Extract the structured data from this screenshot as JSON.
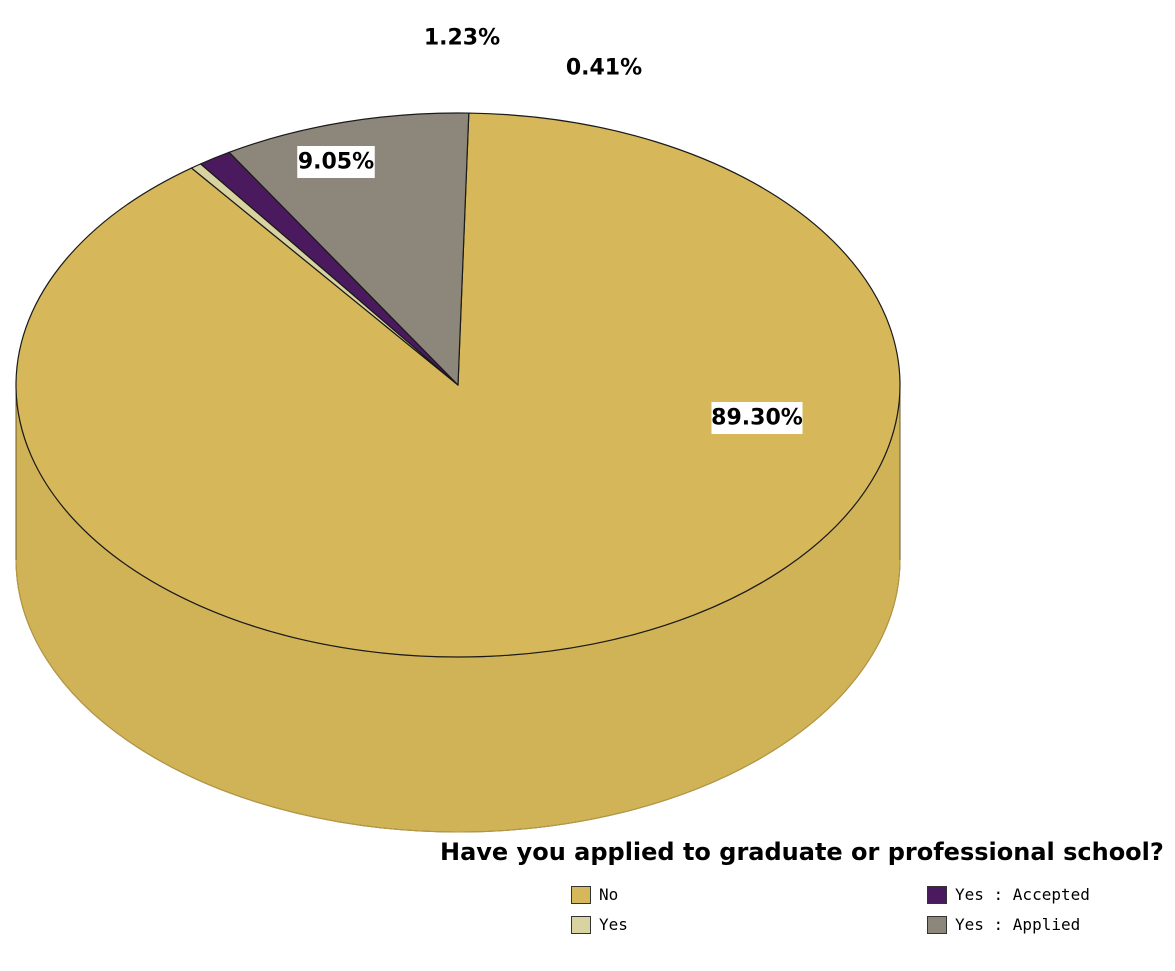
{
  "chart_data": {
    "type": "pie",
    "title": "",
    "slices": [
      {
        "name": "No",
        "value": 89.3,
        "label": "89.30%",
        "color": "#D6B85A"
      },
      {
        "name": "Yes",
        "value": 0.41,
        "label": "0.41%",
        "color": "#D8D3A0"
      },
      {
        "name": "Yes : Accepted",
        "value": 1.23,
        "label": "1.23%",
        "color": "#4B1A5E"
      },
      {
        "name": "Yes : Applied",
        "value": 9.05,
        "label": "9.05%",
        "color": "#8C877A"
      }
    ],
    "legend": {
      "title": "Have you applied to graduate or professional school?",
      "placement": "bottom-right",
      "entries": [
        "No",
        "Yes",
        "Yes : Accepted",
        "Yes : Applied"
      ]
    },
    "style": "3d-extruded",
    "grid": false
  }
}
